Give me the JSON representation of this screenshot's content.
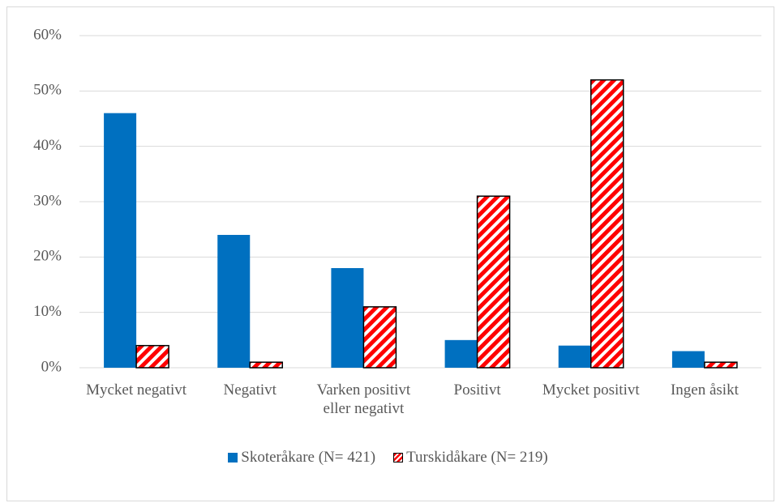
{
  "chart_data": {
    "type": "bar",
    "categories": [
      "Mycket negativt",
      "Negativt",
      "Varken positivt eller negativt",
      "Positivt",
      "Mycket positivt",
      "Ingen åsikt"
    ],
    "series": [
      {
        "name": "Skoteråkare (N= 421)",
        "color": "#0070c0",
        "values": [
          46,
          24,
          18,
          5,
          4,
          3
        ]
      },
      {
        "name": "Turskidåkare (N= 219)",
        "color": "#ff0000",
        "values": [
          4,
          1,
          11,
          31,
          52,
          1
        ]
      }
    ],
    "ylim": [
      0,
      60
    ],
    "yticks": [
      {
        "value": 0,
        "label": "0%"
      },
      {
        "value": 10,
        "label": "10%"
      },
      {
        "value": 20,
        "label": "20%"
      },
      {
        "value": 30,
        "label": "30%"
      },
      {
        "value": 40,
        "label": "40%"
      },
      {
        "value": 50,
        "label": "50%"
      },
      {
        "value": 60,
        "label": "60%"
      }
    ],
    "grid": true,
    "legend": "bottom"
  }
}
